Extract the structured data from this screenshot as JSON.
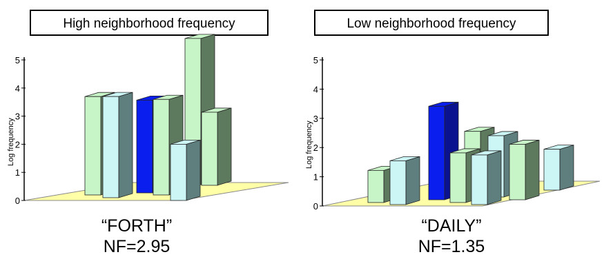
{
  "chart_data": [
    {
      "type": "bar",
      "title": "High neighborhood frequency",
      "ylabel": "Log frequency",
      "ylim": [
        0,
        5
      ],
      "yticks": [
        "0",
        "1",
        "2",
        "3",
        "4",
        "5"
      ],
      "word": "“FORTH”",
      "nf": "NF=2.95",
      "bars": [
        {
          "value": 3.5,
          "color": "#c8f5c8",
          "row": "back"
        },
        {
          "value": 3.6,
          "color": "#ccf5f5",
          "row": "back"
        },
        {
          "value": 3.3,
          "color": "#0a1eee",
          "row": "back"
        },
        {
          "value": 3.4,
          "color": "#c8f5c8",
          "row": "back"
        },
        {
          "value": 5.2,
          "color": "#c8f5c8",
          "row": "back"
        },
        {
          "value": 2.6,
          "color": "#c8f5c8",
          "row": "back"
        },
        {
          "value": 2.0,
          "color": "#ccf5f5",
          "row": "front"
        }
      ]
    },
    {
      "type": "bar",
      "title": "Low neighborhood frequency",
      "ylabel": "Log frequency",
      "ylim": [
        0,
        5
      ],
      "yticks": [
        "0",
        "1",
        "2",
        "3",
        "4",
        "5"
      ],
      "word": "“DAILY”",
      "nf": "NF=1.35",
      "bars": [
        {
          "value": 1.1,
          "color": "#c8f5c8",
          "row": "front"
        },
        {
          "value": 1.5,
          "color": "#ccf5f5",
          "row": "front"
        },
        {
          "value": 3.2,
          "color": "#0a1eee",
          "row": "back"
        },
        {
          "value": 1.7,
          "color": "#c8f5c8",
          "row": "front"
        },
        {
          "value": 1.7,
          "color": "#ccf5f5",
          "row": "front"
        },
        {
          "value": 1.9,
          "color": "#c8f5c8",
          "row": "front"
        },
        {
          "value": 2.2,
          "color": "#c8f5c8",
          "row": "back"
        },
        {
          "value": 2.1,
          "color": "#ccf5f5",
          "row": "back"
        },
        {
          "value": 1.4,
          "color": "#ccf5f5",
          "row": "back"
        }
      ]
    }
  ]
}
